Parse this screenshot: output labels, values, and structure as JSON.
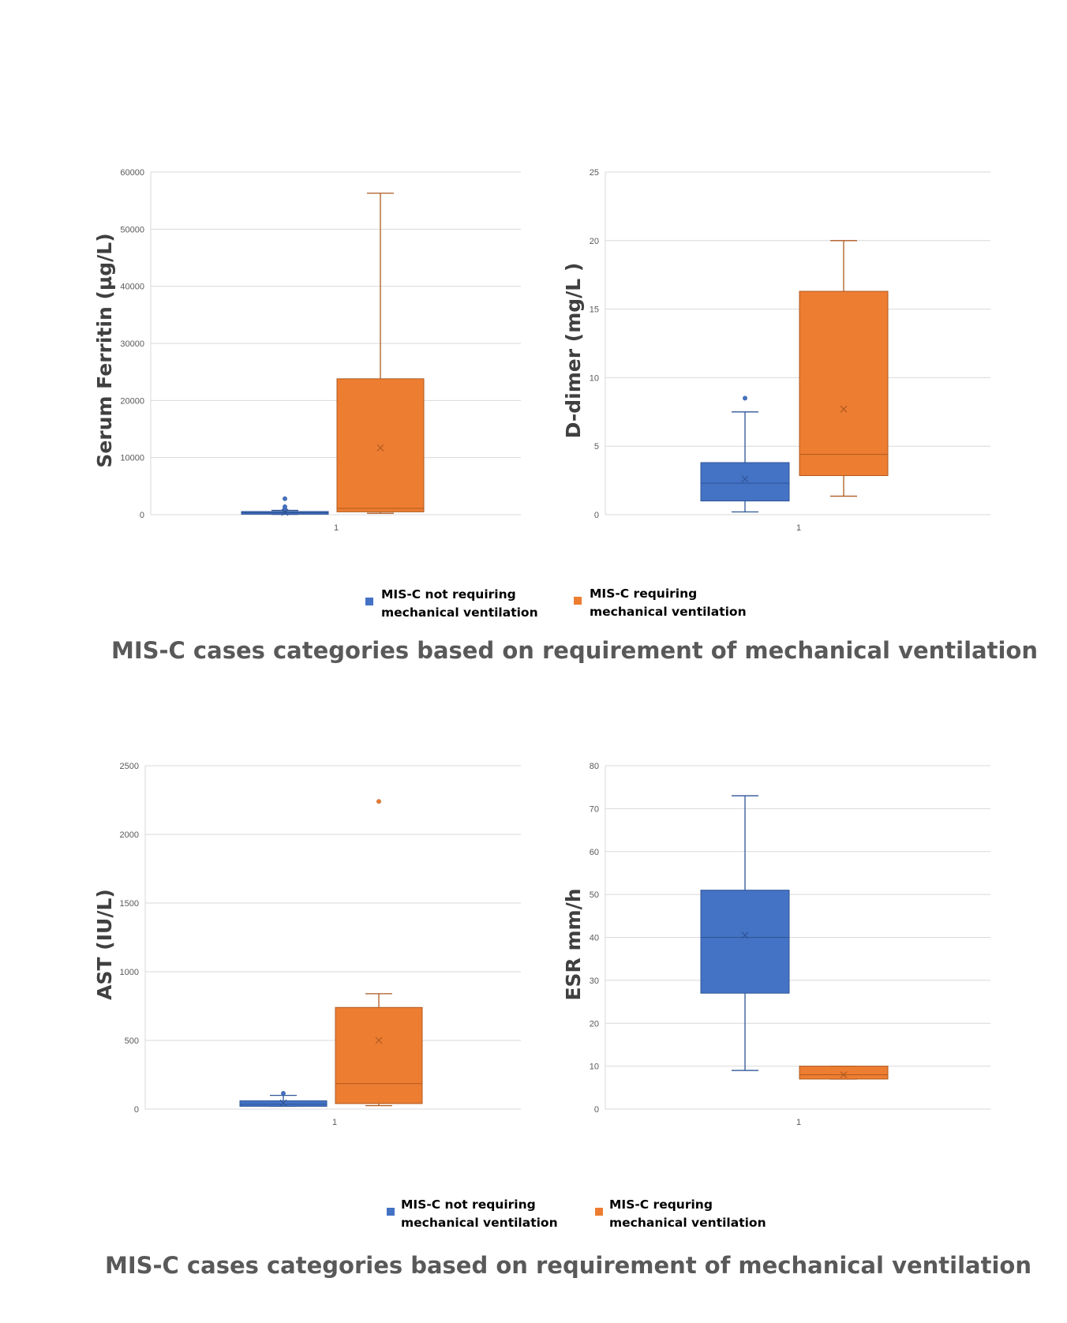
{
  "colors": {
    "not_vent": "#4472C4",
    "not_vent_stroke": "#2F5597",
    "vent": "#ED7D31",
    "vent_stroke": "#AE5A21",
    "grid": "#D9D9D9"
  },
  "chart_data": [
    {
      "type": "box",
      "ylabel": "Serum Ferritin (µg/L)",
      "category": "1",
      "ylim": [
        0,
        60000
      ],
      "yticks": [
        "0",
        "10000",
        "20000",
        "30000",
        "40000",
        "50000",
        "60000"
      ],
      "series": [
        {
          "name": "MIS-C not requiring mechanical ventilation",
          "whisker_low": 50,
          "q1": 80,
          "median": 350,
          "q3": 550,
          "whisker_high": 750,
          "mean": 400,
          "outliers": [
            1000,
            1400,
            2800
          ]
        },
        {
          "name": "MIS-C requiring mechanical ventilation",
          "whisker_low": 250,
          "q1": 500,
          "median": 1100,
          "q3": 23800,
          "whisker_high": 56300,
          "mean": 11700,
          "outliers": []
        }
      ]
    },
    {
      "type": "box",
      "ylabel": "D-dimer (mg/L )",
      "category": "1",
      "ylim": [
        0,
        25
      ],
      "yticks": [
        "0",
        "5",
        "10",
        "15",
        "20",
        "25"
      ],
      "series": [
        {
          "name": "MIS-C not requiring mechanical ventilation",
          "whisker_low": 0.2,
          "q1": 1.0,
          "median": 2.3,
          "q3": 3.8,
          "whisker_high": 7.5,
          "mean": 2.6,
          "outliers": [
            8.5
          ]
        },
        {
          "name": "MIS-C requiring mechanical ventilation",
          "whisker_low": 1.35,
          "q1": 2.85,
          "median": 4.4,
          "q3": 16.3,
          "whisker_high": 20,
          "mean": 7.7,
          "outliers": []
        }
      ]
    },
    {
      "type": "box",
      "ylabel": "AST (IU/L)",
      "category": "1",
      "ylim": [
        0,
        2500
      ],
      "yticks": [
        "0",
        "500",
        "1000",
        "1500",
        "2000",
        "2500"
      ],
      "series": [
        {
          "name": "MIS-C not requiring mechanical ventilation",
          "whisker_low": 20,
          "q1": 20,
          "median": 35,
          "q3": 60,
          "whisker_high": 100,
          "mean": 45,
          "outliers": [
            115
          ]
        },
        {
          "name": "MIS-C requiring mechanical ventilation",
          "whisker_low": 25,
          "q1": 40,
          "median": 185,
          "q3": 740,
          "whisker_high": 840,
          "mean": 500,
          "outliers": [
            2240
          ]
        }
      ]
    },
    {
      "type": "box",
      "ylabel": "ESR mm/h",
      "category": "1",
      "ylim": [
        0,
        80
      ],
      "yticks": [
        "0",
        "10",
        "20",
        "30",
        "40",
        "50",
        "60",
        "70",
        "80"
      ],
      "series": [
        {
          "name": "MIS-C not requiring mechanical ventilation",
          "whisker_low": 9,
          "q1": 27,
          "median": 40,
          "q3": 51,
          "whisker_high": 73,
          "mean": 40.5,
          "outliers": []
        },
        {
          "name": "MIS-C requiring mechanical ventilation",
          "whisker_low": 7,
          "q1": 7,
          "median": 8,
          "q3": 10,
          "whisker_high": 10,
          "mean": 8,
          "outliers": []
        }
      ]
    }
  ],
  "legend_top": {
    "not_vent_line1": "MIS-C not requiring",
    "not_vent_line2": "mechanical ventilation",
    "vent_line1": "MIS-C requiring",
    "vent_line2": "mechanical ventilation"
  },
  "legend_bottom": {
    "not_vent_line1": "MIS-C not requiring",
    "not_vent_line2": "mechanical ventilation",
    "vent_line1": "MIS-C requring",
    "vent_line2": "mechanical ventilation"
  },
  "caption_top": "MIS-C cases categories based on requirement of mechanical ventilation",
  "caption_bottom": "MIS-C cases categories based on requirement of mechanical ventilation"
}
